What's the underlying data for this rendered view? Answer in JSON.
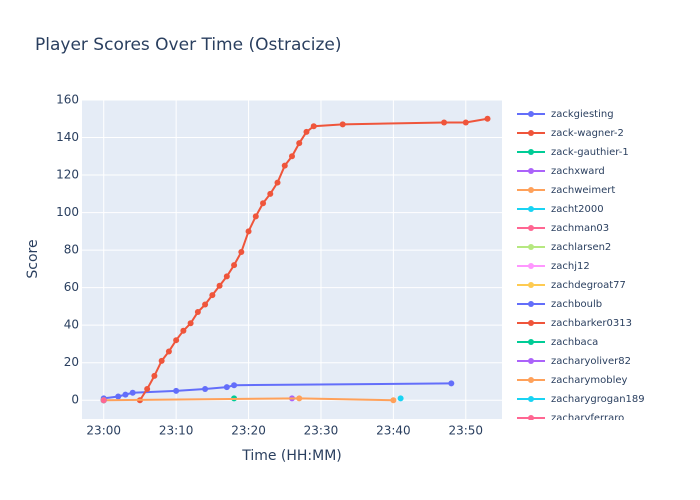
{
  "chart_data": {
    "type": "line",
    "title": "Player Scores Over Time (Ostracize)",
    "x_label": "Time (HH:MM)",
    "y_label": "Score",
    "xlim": [
      "22:57",
      "23:55"
    ],
    "xticks": [
      "23:00",
      "23:10",
      "23:20",
      "23:30",
      "23:40",
      "23:50"
    ],
    "ylim": [
      -10,
      160
    ],
    "yticks": [
      0,
      20,
      40,
      60,
      80,
      100,
      120,
      140,
      160
    ],
    "grid": true,
    "legend": "right",
    "series": [
      {
        "name": "zackgiesting",
        "color": "#636efa",
        "x": [
          "23:00",
          "23:02",
          "23:03",
          "23:04",
          "23:10",
          "23:14",
          "23:17",
          "23:18",
          "23:48"
        ],
        "values": [
          1,
          2,
          3,
          4,
          5,
          6,
          7,
          8,
          9
        ]
      },
      {
        "name": "zack-wagner-2",
        "color": "#ef553b",
        "x": [
          "23:05",
          "23:06",
          "23:07",
          "23:08",
          "23:09",
          "23:10",
          "23:11",
          "23:12",
          "23:13",
          "23:14",
          "23:15",
          "23:16",
          "23:17",
          "23:18",
          "23:19",
          "23:20",
          "23:21",
          "23:22",
          "23:23",
          "23:24",
          "23:25",
          "23:26",
          "23:27",
          "23:28",
          "23:29",
          "23:33",
          "23:47",
          "23:50",
          "23:53"
        ],
        "values": [
          0,
          6,
          13,
          21,
          26,
          32,
          37,
          41,
          47,
          51,
          56,
          61,
          66,
          72,
          79,
          90,
          98,
          105,
          110,
          116,
          125,
          130,
          137,
          143,
          146,
          147,
          148,
          148,
          150
        ]
      },
      {
        "name": "zack-gauthier-1",
        "color": "#00cc96",
        "x": [
          "23:18"
        ],
        "values": [
          1
        ]
      },
      {
        "name": "zachxward",
        "color": "#ab63fa",
        "x": [
          "23:26"
        ],
        "values": [
          1
        ]
      },
      {
        "name": "zachweimert",
        "color": "#ffa15a",
        "x": [
          "23:00",
          "23:27",
          "23:40"
        ],
        "values": [
          0,
          1,
          0
        ]
      },
      {
        "name": "zacht2000",
        "color": "#19d3f3",
        "x": [
          "23:41"
        ],
        "values": [
          1
        ]
      },
      {
        "name": "zachman03",
        "color": "#ff6692",
        "x": [
          "23:00"
        ],
        "values": [
          0
        ]
      },
      {
        "name": "zachlarsen2",
        "color": "#b6e880",
        "x": [
          "23:00"
        ],
        "values": [
          0
        ]
      },
      {
        "name": "zachj12",
        "color": "#ff97ff",
        "x": [
          "23:00"
        ],
        "values": [
          0
        ]
      },
      {
        "name": "zachdegroat77",
        "color": "#fecb52",
        "x": [
          "23:00"
        ],
        "values": [
          0
        ]
      },
      {
        "name": "zachboulb",
        "color": "#636efa",
        "x": [
          "23:00"
        ],
        "values": [
          0
        ]
      },
      {
        "name": "zachbarker0313",
        "color": "#ef553b",
        "x": [
          "23:00"
        ],
        "values": [
          0
        ]
      },
      {
        "name": "zachbaca",
        "color": "#00cc96",
        "x": [
          "23:00"
        ],
        "values": [
          0
        ]
      },
      {
        "name": "zacharyoliver82",
        "color": "#ab63fa",
        "x": [
          "23:00"
        ],
        "values": [
          0
        ]
      },
      {
        "name": "zacharymobley",
        "color": "#ffa15a",
        "x": [
          "23:00"
        ],
        "values": [
          0
        ]
      },
      {
        "name": "zacharygrogan189",
        "color": "#19d3f3",
        "x": [
          "23:00"
        ],
        "values": [
          0
        ]
      },
      {
        "name": "zacharyferraro",
        "color": "#ff6692",
        "x": [
          "23:00"
        ],
        "values": [
          0
        ]
      }
    ]
  }
}
